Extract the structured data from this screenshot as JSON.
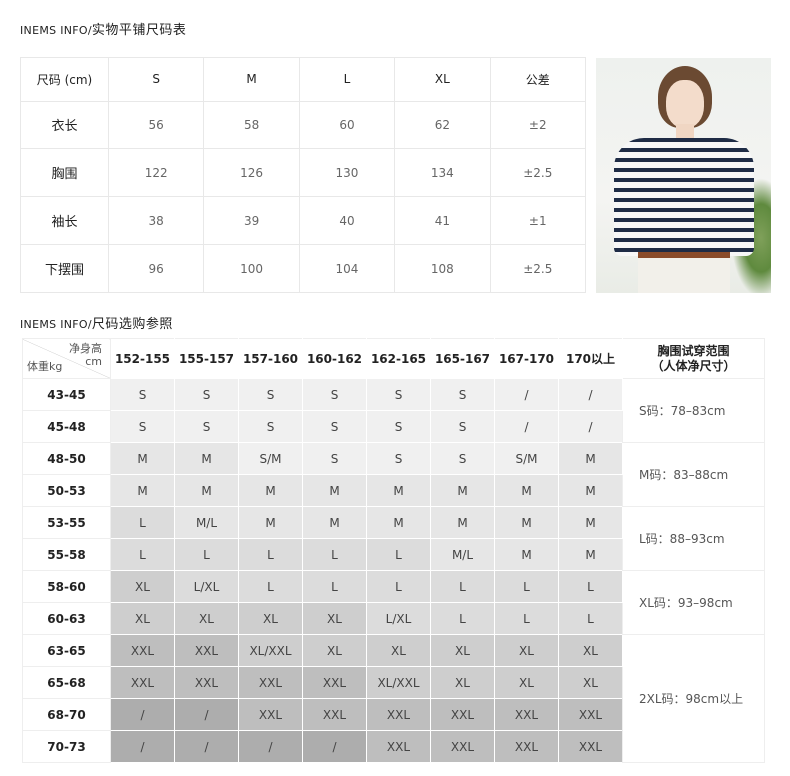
{
  "section1": {
    "title_en": "INEMS INFO/",
    "title_cn": "实物平铺尺码表",
    "headers": [
      "尺码 (cm)",
      "S",
      "M",
      "L",
      "XL",
      "公差"
    ],
    "rows": [
      {
        "label": "衣长",
        "values": [
          "56",
          "58",
          "60",
          "62",
          "±2"
        ]
      },
      {
        "label": "胸围",
        "values": [
          "122",
          "126",
          "130",
          "134",
          "±2.5"
        ]
      },
      {
        "label": "袖长",
        "values": [
          "38",
          "39",
          "40",
          "41",
          "±1"
        ]
      },
      {
        "label": "下摆围",
        "values": [
          "96",
          "100",
          "104",
          "108",
          "±2.5"
        ]
      }
    ]
  },
  "photo": {
    "subject": "model-striped-tshirt"
  },
  "section2": {
    "title_en": "INEMS INFO/",
    "title_cn": "尺码选购参照",
    "corner_height": "净身高",
    "corner_unit": "cm",
    "corner_weight": "体重kg",
    "heights": [
      "152-155",
      "155-157",
      "157-160",
      "160-162",
      "162-165",
      "165-167",
      "167-170",
      "170以上"
    ],
    "range_header_1": "胸围试穿范围",
    "range_header_2": "（人体净尺寸）",
    "shade_colors": [
      "#f0f0f0",
      "#e6e6e6",
      "#dcdcdc",
      "#cecece",
      "#bebebe",
      "#adadad"
    ],
    "rows": [
      {
        "weight": "43-45",
        "sizes": [
          "S",
          "S",
          "S",
          "S",
          "S",
          "S",
          "/",
          "/"
        ],
        "shades": [
          0,
          0,
          0,
          0,
          0,
          0,
          0,
          0
        ]
      },
      {
        "weight": "45-48",
        "sizes": [
          "S",
          "S",
          "S",
          "S",
          "S",
          "S",
          "/",
          "/"
        ],
        "shades": [
          0,
          0,
          0,
          0,
          0,
          0,
          0,
          0
        ]
      },
      {
        "weight": "48-50",
        "sizes": [
          "M",
          "M",
          "S/M",
          "S",
          "S",
          "S",
          "S/M",
          "M"
        ],
        "shades": [
          1,
          1,
          0,
          0,
          0,
          0,
          0,
          1
        ]
      },
      {
        "weight": "50-53",
        "sizes": [
          "M",
          "M",
          "M",
          "M",
          "M",
          "M",
          "M",
          "M"
        ],
        "shades": [
          1,
          1,
          1,
          1,
          1,
          1,
          1,
          1
        ]
      },
      {
        "weight": "53-55",
        "sizes": [
          "L",
          "M/L",
          "M",
          "M",
          "M",
          "M",
          "M",
          "M"
        ],
        "shades": [
          2,
          1,
          1,
          1,
          1,
          1,
          1,
          1
        ]
      },
      {
        "weight": "55-58",
        "sizes": [
          "L",
          "L",
          "L",
          "L",
          "L",
          "M/L",
          "M",
          "M"
        ],
        "shades": [
          2,
          2,
          2,
          2,
          2,
          1,
          1,
          1
        ]
      },
      {
        "weight": "58-60",
        "sizes": [
          "XL",
          "L/XL",
          "L",
          "L",
          "L",
          "L",
          "L",
          "L"
        ],
        "shades": [
          3,
          2,
          2,
          2,
          2,
          2,
          2,
          2
        ]
      },
      {
        "weight": "60-63",
        "sizes": [
          "XL",
          "XL",
          "XL",
          "XL",
          "L/XL",
          "L",
          "L",
          "L"
        ],
        "shades": [
          3,
          3,
          3,
          3,
          2,
          2,
          2,
          2
        ]
      },
      {
        "weight": "63-65",
        "sizes": [
          "XXL",
          "XXL",
          "XL/XXL",
          "XL",
          "XL",
          "XL",
          "XL",
          "XL"
        ],
        "shades": [
          4,
          4,
          3,
          3,
          3,
          3,
          3,
          3
        ]
      },
      {
        "weight": "65-68",
        "sizes": [
          "XXL",
          "XXL",
          "XXL",
          "XXL",
          "XL/XXL",
          "XL",
          "XL",
          "XL"
        ],
        "shades": [
          4,
          4,
          4,
          4,
          3,
          3,
          3,
          3
        ]
      },
      {
        "weight": "68-70",
        "sizes": [
          "/",
          "/",
          "XXL",
          "XXL",
          "XXL",
          "XXL",
          "XXL",
          "XXL"
        ],
        "shades": [
          5,
          5,
          4,
          4,
          4,
          4,
          4,
          4
        ]
      },
      {
        "weight": "70-73",
        "sizes": [
          "/",
          "/",
          "/",
          "/",
          "XXL",
          "XXL",
          "XXL",
          "XXL"
        ],
        "shades": [
          5,
          5,
          5,
          5,
          4,
          4,
          4,
          4
        ]
      }
    ],
    "ranges": [
      {
        "text": "S码：78–83cm",
        "rows": 2
      },
      {
        "text": "M码：83–88cm",
        "rows": 2
      },
      {
        "text": "L码：88–93cm",
        "rows": 2
      },
      {
        "text": "XL码：93–98cm",
        "rows": 2
      },
      {
        "text": "2XL码：98cm以上",
        "rows": 4
      }
    ]
  }
}
